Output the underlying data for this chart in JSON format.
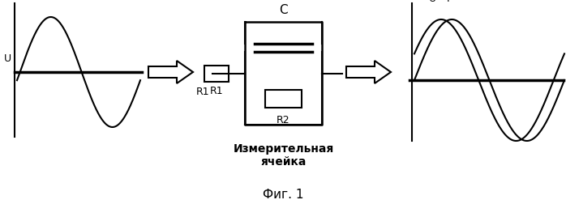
{
  "title": "Фиг. 1",
  "label_cell": "Измерительная\nячейка",
  "label_U": "U",
  "label_I": "I",
  "label_C": "C",
  "label_R1": "R1",
  "label_R2": "R2",
  "bg_color": "#ffffff",
  "line_color": "#000000",
  "fig_width": 6.98,
  "fig_height": 2.53
}
